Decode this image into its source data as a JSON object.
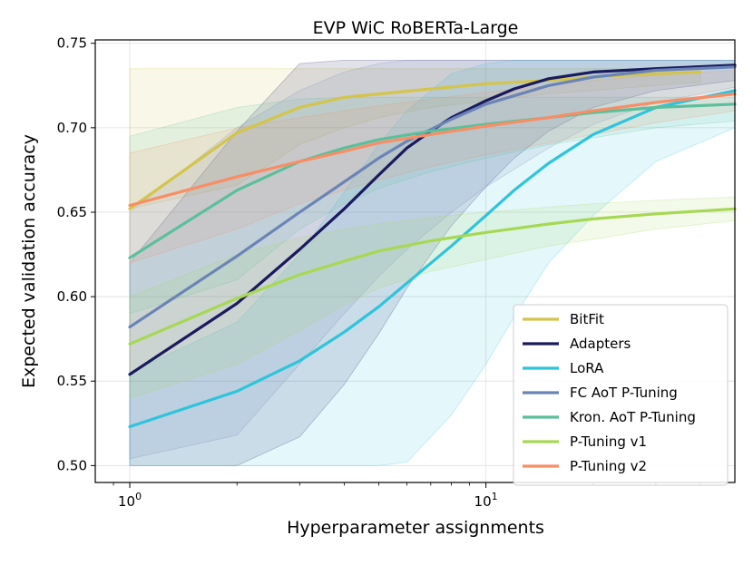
{
  "chart_data": {
    "type": "line",
    "title": "EVP WiC RoBERTa-Large",
    "xlabel": "Hyperparameter assignments",
    "ylabel": "Expected validation accuracy",
    "xscale": "log",
    "xlim": [
      0.8,
      50
    ],
    "ylim": [
      0.49,
      0.752
    ],
    "x_ticks": [
      {
        "value": 1,
        "base": "10",
        "exp": "0"
      },
      {
        "value": 10,
        "base": "10",
        "exp": "1"
      }
    ],
    "y_ticks": [
      0.5,
      0.55,
      0.6,
      0.65,
      0.7,
      0.75
    ],
    "y_tick_labels": [
      "0.50",
      "0.55",
      "0.60",
      "0.65",
      "0.70",
      "0.75"
    ],
    "grid": true,
    "legend": "lower-right",
    "series": [
      {
        "name": "BitFit",
        "color": "#d4c44b",
        "x": [
          1,
          2,
          3,
          4,
          5,
          7,
          10,
          15,
          20,
          30,
          40
        ],
        "y": [
          0.652,
          0.697,
          0.712,
          0.718,
          0.72,
          0.723,
          0.726,
          0.728,
          0.73,
          0.732,
          0.733
        ],
        "lower": [
          0.652,
          0.666,
          0.69,
          0.7,
          0.706,
          0.712,
          0.716,
          0.72,
          0.722,
          0.725,
          0.727
        ],
        "upper": [
          0.735,
          0.735,
          0.735,
          0.735,
          0.735,
          0.735,
          0.735,
          0.735,
          0.735,
          0.735,
          0.735
        ]
      },
      {
        "name": "Adapters",
        "color": "#1a1a5e",
        "x": [
          1,
          2,
          3,
          4,
          5,
          6,
          7,
          8,
          10,
          12,
          15,
          20,
          30,
          50
        ],
        "y": [
          0.554,
          0.596,
          0.628,
          0.652,
          0.672,
          0.688,
          0.698,
          0.706,
          0.716,
          0.723,
          0.729,
          0.733,
          0.735,
          0.737
        ],
        "lower": [
          0.5,
          0.5,
          0.517,
          0.548,
          0.578,
          0.605,
          0.625,
          0.642,
          0.665,
          0.682,
          0.698,
          0.712,
          0.722,
          0.728
        ],
        "upper": [
          0.62,
          0.698,
          0.738,
          0.74,
          0.74,
          0.74,
          0.74,
          0.74,
          0.74,
          0.74,
          0.74,
          0.74,
          0.74,
          0.74
        ]
      },
      {
        "name": "LoRA",
        "color": "#2ec4dc",
        "x": [
          1,
          2,
          3,
          4,
          5,
          6,
          8,
          10,
          12,
          15,
          20,
          30,
          50
        ],
        "y": [
          0.523,
          0.544,
          0.562,
          0.579,
          0.594,
          0.608,
          0.63,
          0.648,
          0.663,
          0.679,
          0.696,
          0.712,
          0.722
        ],
        "lower": [
          0.5,
          0.5,
          0.5,
          0.5,
          0.5,
          0.502,
          0.53,
          0.56,
          0.588,
          0.62,
          0.648,
          0.68,
          0.7
        ],
        "upper": [
          0.555,
          0.585,
          0.625,
          0.662,
          0.69,
          0.71,
          0.732,
          0.738,
          0.74,
          0.74,
          0.74,
          0.74,
          0.74
        ]
      },
      {
        "name": "FC AoT P-Tuning",
        "color": "#6b84b8",
        "x": [
          1,
          2,
          3,
          4,
          5,
          6,
          8,
          10,
          15,
          20,
          30,
          50
        ],
        "y": [
          0.582,
          0.624,
          0.65,
          0.668,
          0.682,
          0.692,
          0.705,
          0.714,
          0.725,
          0.73,
          0.734,
          0.736
        ],
        "lower": [
          0.504,
          0.518,
          0.56,
          0.59,
          0.612,
          0.628,
          0.65,
          0.665,
          0.688,
          0.702,
          0.715,
          0.724
        ],
        "upper": [
          0.65,
          0.7,
          0.722,
          0.733,
          0.738,
          0.74,
          0.74,
          0.74,
          0.74,
          0.74,
          0.74,
          0.74
        ]
      },
      {
        "name": "Kron. AoT P-Tuning",
        "color": "#5cbf9b",
        "x": [
          1,
          2,
          3,
          4,
          5,
          7,
          10,
          15,
          20,
          30,
          50
        ],
        "y": [
          0.623,
          0.663,
          0.68,
          0.688,
          0.693,
          0.698,
          0.702,
          0.706,
          0.709,
          0.712,
          0.714
        ],
        "lower": [
          0.59,
          0.61,
          0.64,
          0.655,
          0.664,
          0.674,
          0.682,
          0.69,
          0.694,
          0.7,
          0.704
        ],
        "upper": [
          0.695,
          0.712,
          0.717,
          0.718,
          0.718,
          0.718,
          0.718,
          0.718,
          0.718,
          0.718,
          0.718
        ]
      },
      {
        "name": "P-Tuning v1",
        "color": "#a6d854",
        "x": [
          1,
          2,
          3,
          4,
          5,
          7,
          10,
          15,
          20,
          30,
          50
        ],
        "y": [
          0.572,
          0.599,
          0.613,
          0.621,
          0.627,
          0.633,
          0.638,
          0.643,
          0.646,
          0.649,
          0.652
        ],
        "lower": [
          0.54,
          0.56,
          0.58,
          0.595,
          0.605,
          0.615,
          0.622,
          0.63,
          0.634,
          0.64,
          0.645
        ],
        "upper": [
          0.6,
          0.625,
          0.635,
          0.64,
          0.643,
          0.647,
          0.65,
          0.653,
          0.655,
          0.657,
          0.659
        ]
      },
      {
        "name": "P-Tuning v2",
        "color": "#f98d65",
        "x": [
          1,
          2,
          3,
          4,
          5,
          7,
          10,
          15,
          20,
          30,
          50
        ],
        "y": [
          0.654,
          0.671,
          0.68,
          0.686,
          0.691,
          0.696,
          0.701,
          0.706,
          0.71,
          0.715,
          0.72
        ],
        "lower": [
          0.62,
          0.64,
          0.655,
          0.663,
          0.669,
          0.677,
          0.684,
          0.691,
          0.696,
          0.703,
          0.71
        ],
        "upper": [
          0.685,
          0.7,
          0.706,
          0.71,
          0.713,
          0.717,
          0.721,
          0.725,
          0.728,
          0.731,
          0.734
        ]
      }
    ]
  }
}
